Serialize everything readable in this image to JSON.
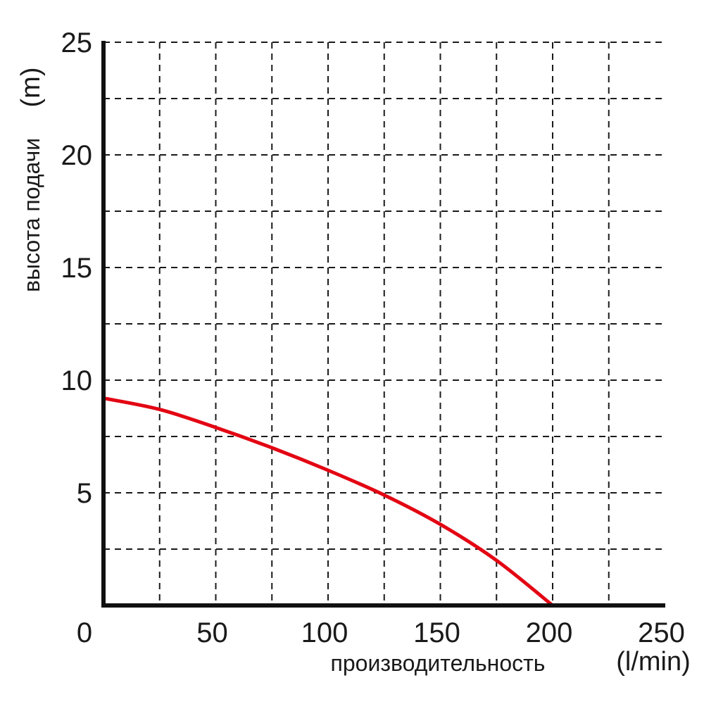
{
  "chart_data": {
    "type": "line",
    "xlabel": "производительность",
    "xunit": "(l/min)",
    "ylabel": "высота подачи",
    "yunit": "(m)",
    "xlim": [
      0,
      250
    ],
    "ylim": [
      0,
      25
    ],
    "x_ticks": [
      0,
      50,
      100,
      150,
      200,
      250
    ],
    "y_ticks": [
      5,
      10,
      15,
      20,
      25
    ],
    "x_grid_step": 25,
    "y_grid_step": 2.5,
    "grid": true,
    "series": [
      {
        "color": "#e30613",
        "x": [
          0,
          25,
          50,
          75,
          100,
          125,
          150,
          175,
          200
        ],
        "y": [
          9.2,
          8.7,
          7.9,
          7.0,
          6.0,
          4.9,
          3.6,
          2.0,
          0
        ]
      }
    ]
  }
}
